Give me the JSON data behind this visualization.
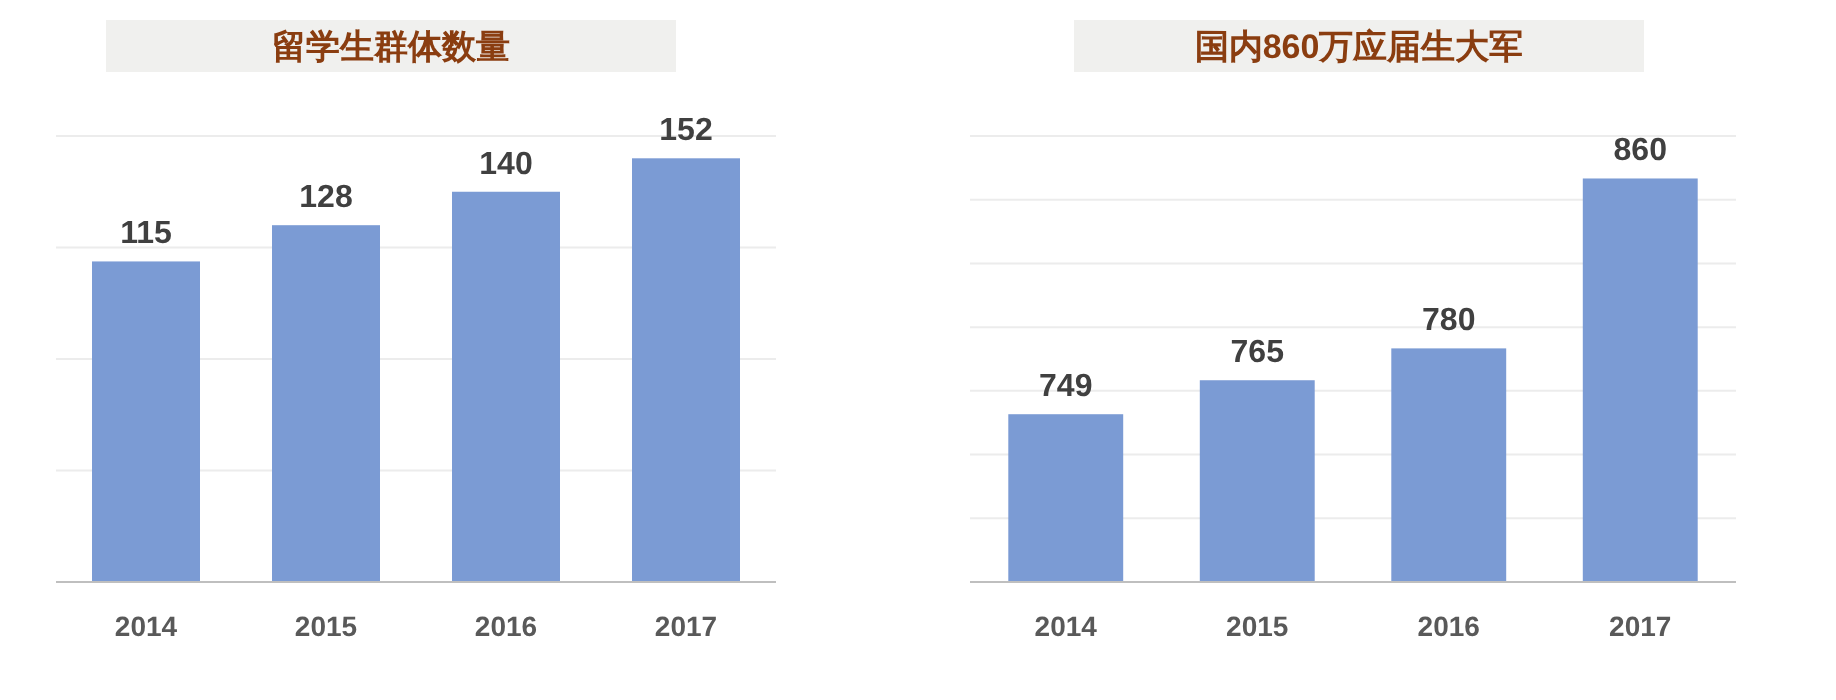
{
  "chart_data": [
    {
      "type": "bar",
      "title": "留学生群体数量",
      "categories": [
        "2014",
        "2015",
        "2016",
        "2017"
      ],
      "values": [
        115,
        128,
        140,
        152
      ],
      "color": "#7b9bd4",
      "data_labels": true,
      "ylim": [
        0,
        160
      ],
      "yticks": [
        {
          "value": 40,
          "label": null
        },
        {
          "value": 80,
          "label": null
        },
        {
          "value": 120,
          "label": null
        },
        {
          "value": 160,
          "label": null
        }
      ],
      "grid": "y",
      "tick_labels": "x"
    },
    {
      "type": "bar",
      "title": "国内860万应届生大军",
      "categories": [
        "2014",
        "2015",
        "2016",
        "2017"
      ],
      "values": [
        749,
        765,
        780,
        860
      ],
      "color": "#7b9bd4",
      "data_labels": true,
      "ylim": [
        670,
        880
      ],
      "yticks": [
        {
          "value": 700,
          "label": null
        },
        {
          "value": 730,
          "label": null
        },
        {
          "value": 760,
          "label": null
        },
        {
          "value": 790,
          "label": null
        },
        {
          "value": 820,
          "label": null
        },
        {
          "value": 850,
          "label": null
        },
        {
          "value": 880,
          "label": null
        }
      ],
      "grid": "y",
      "tick_labels": "x"
    }
  ]
}
